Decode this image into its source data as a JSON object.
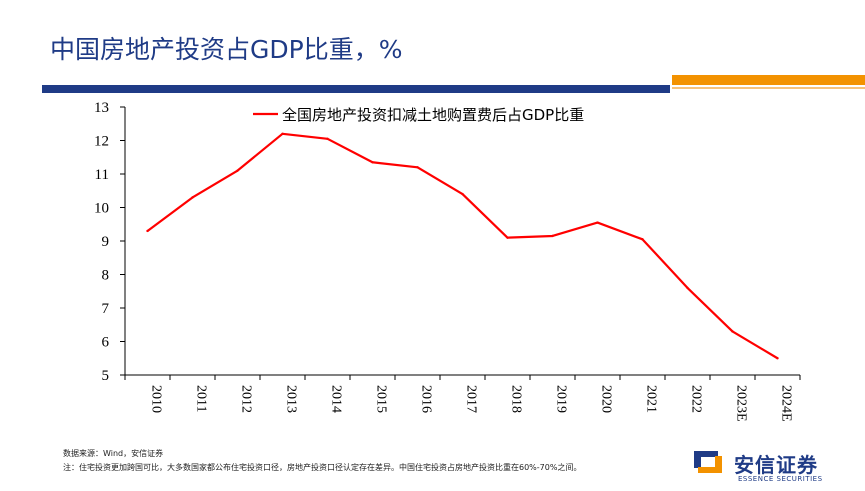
{
  "header": {
    "title": "中国房地产投资占GDP比重，%"
  },
  "chart_data": {
    "type": "line",
    "title": "中国房地产投资占GDP比重，%",
    "categories": [
      "2010",
      "2011",
      "2012",
      "2013",
      "2014",
      "2015",
      "2016",
      "2017",
      "2018",
      "2019",
      "2020",
      "2021",
      "2022",
      "2023E",
      "2024E"
    ],
    "series": [
      {
        "name": "全国房地产投资扣减土地购置费后占GDP比重",
        "values": [
          9.3,
          10.3,
          11.1,
          12.2,
          12.05,
          11.35,
          11.2,
          10.4,
          9.1,
          9.15,
          9.55,
          9.05,
          7.6,
          6.3,
          5.5
        ]
      }
    ],
    "xlabel": "",
    "ylabel": "",
    "ylim": [
      5,
      13
    ],
    "yticks": [
      5,
      6,
      7,
      8,
      9,
      10,
      11,
      12,
      13
    ],
    "legend_position": "top",
    "grid": false,
    "line_color": "#ff0000"
  },
  "footer": {
    "source": "数据来源：Wind，安信证券",
    "note": "注：住宅投资更加跨国可比，大多数国家都公布住宅投资口径，房地产投资口径认定存在差异。中国住宅投资占房地产投资比重在60%-70%之间。"
  },
  "brand": {
    "name": "安信证券",
    "sub": "ESSENCE SECURITIES",
    "primary_color": "#1f3b86",
    "accent_color": "#f39200"
  }
}
